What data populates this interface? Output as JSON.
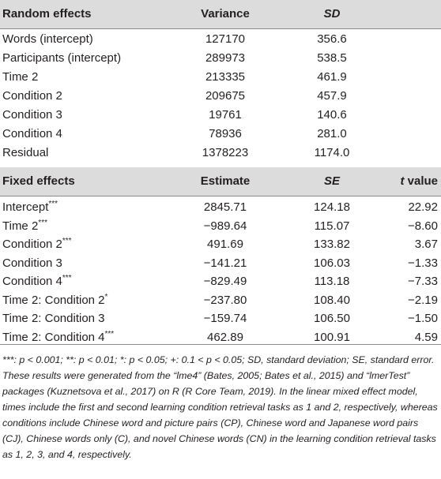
{
  "random_header": {
    "col0": "Random effects",
    "col1": "Variance",
    "col2": "SD"
  },
  "random_rows": [
    {
      "label": "Words (intercept)",
      "variance": "127170",
      "sd": "356.6"
    },
    {
      "label": "Participants (intercept)",
      "variance": "289973",
      "sd": "538.5"
    },
    {
      "label": "Time 2",
      "variance": "213335",
      "sd": "461.9"
    },
    {
      "label": "Condition 2",
      "variance": "209675",
      "sd": "457.9"
    },
    {
      "label": "Condition 3",
      "variance": "19761",
      "sd": "140.6"
    },
    {
      "label": "Condition 4",
      "variance": "78936",
      "sd": "281.0"
    },
    {
      "label": "Residual",
      "variance": "1378223",
      "sd": "1174.0"
    }
  ],
  "fixed_header": {
    "col0": "Fixed effects",
    "col1": "Estimate",
    "col2": "SE",
    "col3_italic": "t",
    "col3_rest": " value"
  },
  "fixed_rows": [
    {
      "label": "Intercept",
      "sig": "***",
      "estimate": "2845.71",
      "se": "124.18",
      "t": "22.92"
    },
    {
      "label": "Time 2",
      "sig": "***",
      "estimate": "−989.64",
      "se": "115.07",
      "t": "−8.60"
    },
    {
      "label": "Condition 2",
      "sig": "***",
      "estimate": "491.69",
      "se": "133.82",
      "t": "3.67"
    },
    {
      "label": "Condition 3",
      "sig": "",
      "estimate": "−141.21",
      "se": "106.03",
      "t": "−1.33"
    },
    {
      "label": "Condition 4",
      "sig": "***",
      "estimate": "−829.49",
      "se": "113.18",
      "t": "−7.33"
    },
    {
      "label": "Time 2: Condition 2",
      "sig": "*",
      "estimate": "−237.80",
      "se": "108.40",
      "t": "−2.19"
    },
    {
      "label": "Time 2: Condition 3",
      "sig": "",
      "estimate": "−159.74",
      "se": "106.50",
      "t": "−1.50"
    },
    {
      "label": "Time 2: Condition 4",
      "sig": "***",
      "estimate": "462.89",
      "se": "100.91",
      "t": "4.59"
    }
  ],
  "footnote": "***: p < 0.001; **: p < 0.01; *: p < 0.05; +: 0.1 < p < 0.05; SD, standard deviation; SE, standard error. These results were generated from the “lme4” (Bates, 2005; Bates et al., 2015) and “lmerTest” packages (Kuznetsova et al., 2017) on R (R Core Team, 2019). In the linear mixed effect model, times include the first and second learning condition retrieval tasks as 1 and 2, respectively, whereas conditions include Chinese word and picture pairs (CP), Chinese word and Japanese word pairs (CJ), Chinese words only (C), and novel Chinese words (CN) in the learning condition retrieval tasks as 1, 2, 3, and 4, respectively."
}
